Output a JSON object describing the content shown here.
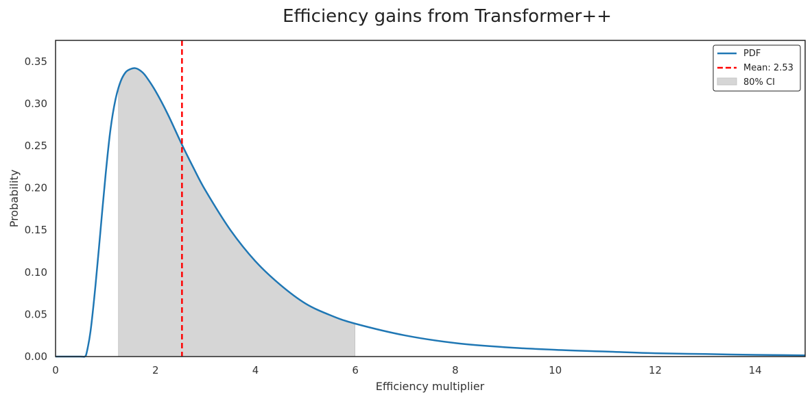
{
  "chart_data": {
    "type": "line",
    "title": "Efficiency gains from Transformer++",
    "xlabel": "Efficiency multiplier",
    "ylabel": "Probability",
    "xlim": [
      0,
      15
    ],
    "ylim": [
      0,
      0.375
    ],
    "x_ticks": [
      0,
      2,
      4,
      6,
      8,
      10,
      12,
      14
    ],
    "x_tick_labels": [
      "0",
      "2",
      "4",
      "6",
      "8",
      "10",
      "12",
      "14"
    ],
    "y_ticks": [
      0,
      0.05,
      0.1,
      0.15,
      0.2,
      0.25,
      0.3,
      0.35
    ],
    "y_tick_labels": [
      "0.00",
      "0.05",
      "0.10",
      "0.15",
      "0.20",
      "0.25",
      "0.30",
      "0.35"
    ],
    "grid": false,
    "legend": {
      "placement": "top-right",
      "entries": [
        {
          "label": "PDF",
          "style": "line",
          "color": "#1f77b4"
        },
        {
          "label": "Mean: 2.53",
          "style": "dashed-line",
          "color": "#ff0000"
        },
        {
          "label": "80% CI",
          "style": "patch",
          "color": "#d6d6d6"
        }
      ]
    },
    "series": [
      {
        "name": "PDF",
        "color": "#1f77b4",
        "x": [
          0,
          0.5,
          0.58,
          0.62,
          0.7,
          0.8,
          0.9,
          1.0,
          1.1,
          1.2,
          1.3,
          1.4,
          1.5,
          1.6,
          1.7,
          1.8,
          2.0,
          2.25,
          2.5,
          2.75,
          3.0,
          3.5,
          4.0,
          4.5,
          5.0,
          5.5,
          6.0,
          7.0,
          8.0,
          9.0,
          10.0,
          11.0,
          12.0,
          13.0,
          14.0,
          15.0
        ],
        "y": [
          0,
          0,
          0,
          0.004,
          0.03,
          0.085,
          0.15,
          0.215,
          0.27,
          0.305,
          0.326,
          0.337,
          0.341,
          0.342,
          0.339,
          0.333,
          0.315,
          0.287,
          0.255,
          0.225,
          0.197,
          0.15,
          0.113,
          0.085,
          0.063,
          0.049,
          0.039,
          0.025,
          0.016,
          0.011,
          0.008,
          0.006,
          0.004,
          0.003,
          0.002,
          0.0015
        ]
      }
    ],
    "mean": {
      "value": 2.53,
      "label": "Mean: 2.53",
      "color": "#ff0000"
    },
    "confidence_interval": {
      "label": "80% CI",
      "low": 1.26,
      "high": 5.99,
      "level": 0.8,
      "color": "#d6d6d6"
    }
  }
}
